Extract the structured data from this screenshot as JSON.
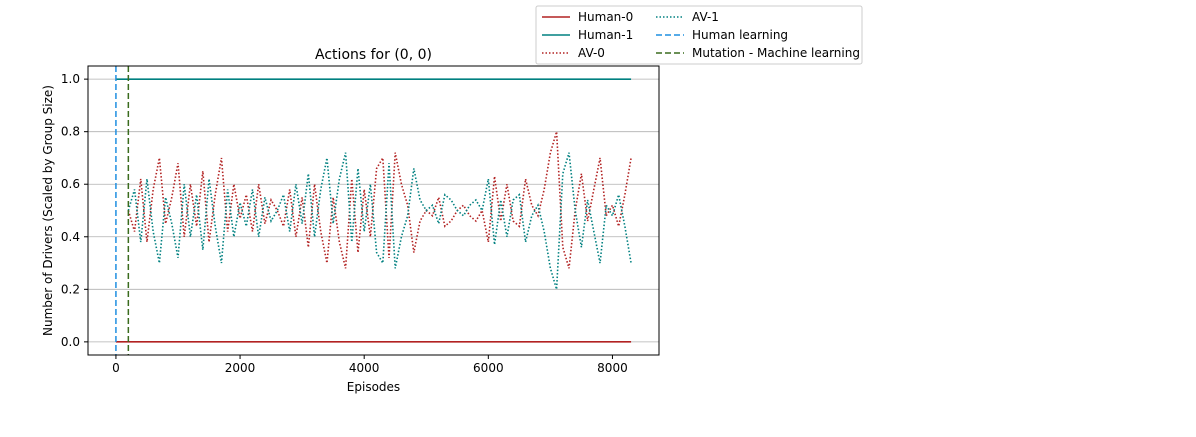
{
  "chart_data": {
    "type": "line",
    "title": "Actions for (0, 0)",
    "xlabel": "Episodes",
    "ylabel": "Number of Drivers (Scaled by Group Size)",
    "xlim": [
      -450,
      8750
    ],
    "ylim": [
      -0.05,
      1.05
    ],
    "xticks": [
      0,
      2000,
      4000,
      6000,
      8000
    ],
    "xtick_labels": [
      "0",
      "2000",
      "4000",
      "6000",
      "8000"
    ],
    "yticks": [
      0.0,
      0.2,
      0.4,
      0.6,
      0.8,
      1.0
    ],
    "ytick_labels": [
      "0.0",
      "0.2",
      "0.4",
      "0.6",
      "0.8",
      "1.0"
    ],
    "grid": "y-only",
    "legend_position": "upper-right-outside",
    "series": [
      {
        "name": "Human-0",
        "style": "solid",
        "color": "#b22222",
        "x": [
          0,
          8300
        ],
        "values": [
          0.0,
          0.0
        ]
      },
      {
        "name": "Human-1",
        "style": "solid",
        "color": "#008080",
        "x": [
          0,
          8300
        ],
        "values": [
          1.0,
          1.0
        ]
      },
      {
        "name": "AV-0",
        "style": "dotted",
        "color": "#b22222",
        "x": [
          200,
          300,
          400,
          500,
          600,
          700,
          800,
          900,
          1000,
          1100,
          1200,
          1300,
          1400,
          1500,
          1600,
          1700,
          1800,
          1900,
          2000,
          2100,
          2200,
          2300,
          2400,
          2500,
          2600,
          2700,
          2800,
          2900,
          3000,
          3100,
          3200,
          3300,
          3400,
          3500,
          3600,
          3700,
          3800,
          3900,
          4000,
          4100,
          4200,
          4300,
          4400,
          4500,
          4600,
          4700,
          4800,
          4900,
          5000,
          5100,
          5200,
          5300,
          5400,
          5500,
          5600,
          5700,
          5800,
          5900,
          6000,
          6100,
          6200,
          6300,
          6400,
          6500,
          6600,
          6700,
          6800,
          6900,
          7000,
          7100,
          7200,
          7300,
          7400,
          7500,
          7600,
          7700,
          7800,
          7900,
          8000,
          8100,
          8200,
          8300
        ],
        "values": [
          0.5,
          0.42,
          0.62,
          0.38,
          0.58,
          0.7,
          0.45,
          0.55,
          0.68,
          0.4,
          0.6,
          0.44,
          0.65,
          0.38,
          0.56,
          0.7,
          0.42,
          0.6,
          0.47,
          0.56,
          0.42,
          0.6,
          0.45,
          0.54,
          0.5,
          0.44,
          0.58,
          0.4,
          0.55,
          0.36,
          0.6,
          0.42,
          0.3,
          0.55,
          0.38,
          0.28,
          0.62,
          0.34,
          0.58,
          0.4,
          0.66,
          0.7,
          0.32,
          0.72,
          0.6,
          0.52,
          0.34,
          0.46,
          0.5,
          0.48,
          0.55,
          0.44,
          0.46,
          0.5,
          0.52,
          0.48,
          0.46,
          0.5,
          0.38,
          0.63,
          0.46,
          0.6,
          0.46,
          0.44,
          0.62,
          0.52,
          0.48,
          0.58,
          0.72,
          0.8,
          0.36,
          0.28,
          0.5,
          0.64,
          0.46,
          0.58,
          0.7,
          0.48,
          0.52,
          0.44,
          0.56,
          0.7
        ]
      },
      {
        "name": "AV-1",
        "style": "dotted",
        "color": "#008080",
        "x": [
          200,
          300,
          400,
          500,
          600,
          700,
          800,
          900,
          1000,
          1100,
          1200,
          1300,
          1400,
          1500,
          1600,
          1700,
          1800,
          1900,
          2000,
          2100,
          2200,
          2300,
          2400,
          2500,
          2600,
          2700,
          2800,
          2900,
          3000,
          3100,
          3200,
          3300,
          3400,
          3500,
          3600,
          3700,
          3800,
          3900,
          4000,
          4100,
          4200,
          4300,
          4400,
          4500,
          4600,
          4700,
          4800,
          4900,
          5000,
          5100,
          5200,
          5300,
          5400,
          5500,
          5600,
          5700,
          5800,
          5900,
          6000,
          6100,
          6200,
          6300,
          6400,
          6500,
          6600,
          6700,
          6800,
          6900,
          7000,
          7100,
          7200,
          7300,
          7400,
          7500,
          7600,
          7700,
          7800,
          7900,
          8000,
          8100,
          8200,
          8300
        ],
        "values": [
          0.5,
          0.58,
          0.38,
          0.62,
          0.42,
          0.3,
          0.55,
          0.45,
          0.32,
          0.6,
          0.4,
          0.56,
          0.35,
          0.62,
          0.44,
          0.3,
          0.58,
          0.4,
          0.53,
          0.44,
          0.58,
          0.4,
          0.55,
          0.46,
          0.5,
          0.56,
          0.42,
          0.6,
          0.45,
          0.64,
          0.4,
          0.58,
          0.7,
          0.45,
          0.62,
          0.72,
          0.38,
          0.66,
          0.42,
          0.6,
          0.34,
          0.3,
          0.68,
          0.28,
          0.4,
          0.48,
          0.66,
          0.54,
          0.5,
          0.52,
          0.45,
          0.56,
          0.54,
          0.5,
          0.48,
          0.52,
          0.54,
          0.5,
          0.62,
          0.37,
          0.54,
          0.4,
          0.54,
          0.56,
          0.38,
          0.48,
          0.52,
          0.42,
          0.28,
          0.2,
          0.64,
          0.72,
          0.5,
          0.36,
          0.54,
          0.42,
          0.3,
          0.52,
          0.48,
          0.56,
          0.44,
          0.3
        ]
      }
    ],
    "vlines": [
      {
        "name": "Human learning",
        "style": "dashed",
        "color": "#1f8fe0",
        "x": 0
      },
      {
        "name": "Mutation - Machine learning",
        "style": "dashed",
        "color": "#3a6b1e",
        "x": 200
      }
    ],
    "legend": {
      "columns": [
        [
          "Human-0",
          "Human-1",
          "AV-0"
        ],
        [
          "AV-1",
          "Human learning",
          "Mutation - Machine learning"
        ]
      ]
    }
  }
}
